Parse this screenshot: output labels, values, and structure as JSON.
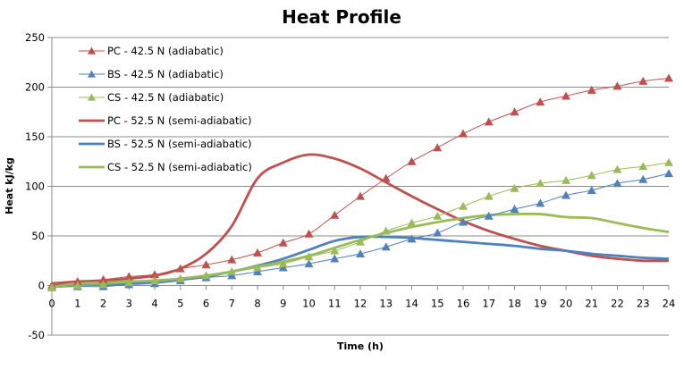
{
  "chart_data": {
    "type": "line",
    "title": "Heat Profile",
    "xlabel": "Time (h)",
    "ylabel": "Heat kJ/kg",
    "xlim": [
      0,
      24
    ],
    "ylim": [
      -50,
      250
    ],
    "x_ticks": [
      0,
      1,
      2,
      3,
      4,
      5,
      6,
      7,
      8,
      9,
      10,
      11,
      12,
      13,
      14,
      15,
      16,
      17,
      18,
      19,
      20,
      21,
      22,
      23,
      24
    ],
    "y_ticks": [
      -50,
      0,
      50,
      100,
      150,
      200,
      250
    ],
    "grid": "horizontal",
    "legend_position": "top-left",
    "x": [
      0,
      1,
      2,
      3,
      4,
      5,
      6,
      7,
      8,
      9,
      10,
      11,
      12,
      13,
      14,
      15,
      16,
      17,
      18,
      19,
      20,
      21,
      22,
      23,
      24
    ],
    "series": [
      {
        "name": "PC - 42.5 N (adiabatic)",
        "color": "#c0504d",
        "style": "thin-marker",
        "values": [
          0,
          4,
          6,
          9,
          11,
          17,
          21,
          26,
          33,
          43,
          52,
          71,
          90,
          108,
          125,
          139,
          153,
          165,
          175,
          185,
          191,
          197,
          201,
          206,
          209
        ]
      },
      {
        "name": "BS - 42.5 N (adiabatic)",
        "color": "#4f81bd",
        "style": "thin-marker",
        "values": [
          -2,
          -1,
          -1,
          1,
          2,
          5,
          8,
          10,
          14,
          18,
          22,
          27,
          32,
          39,
          47,
          53,
          64,
          70,
          77,
          83,
          91,
          96,
          103,
          107,
          113
        ]
      },
      {
        "name": "CS - 42.5 N (adiabatic)",
        "color": "#9bbb59",
        "style": "thin-marker",
        "values": [
          -2,
          0,
          1,
          3,
          5,
          7,
          10,
          14,
          18,
          22,
          29,
          35,
          44,
          55,
          63,
          70,
          80,
          90,
          98,
          103,
          106,
          111,
          117,
          120,
          124
        ]
      },
      {
        "name": "PC - 52.5 N (semi-adiabatic)",
        "color": "#c0504d",
        "style": "thick",
        "values": [
          2,
          4,
          5,
          7,
          10,
          17,
          32,
          60,
          108,
          124,
          132,
          128,
          118,
          104,
          90,
          77,
          65,
          55,
          47,
          40,
          35,
          30,
          27,
          25,
          25
        ]
      },
      {
        "name": "BS - 52.5 N  (semi-adiabatic)",
        "color": "#4f81bd",
        "style": "thick",
        "values": [
          0,
          1,
          1,
          2,
          4,
          6,
          9,
          14,
          20,
          27,
          36,
          45,
          49,
          49,
          48,
          46,
          44,
          42,
          40,
          37,
          35,
          32,
          30,
          28,
          27
        ]
      },
      {
        "name": "CS - 52.5 N  (semi-adiabatic)",
        "color": "#9bbb59",
        "style": "thick",
        "values": [
          0,
          2,
          3,
          4,
          5,
          7,
          10,
          14,
          19,
          24,
          30,
          38,
          46,
          53,
          59,
          64,
          68,
          71,
          72,
          72,
          69,
          68,
          63,
          58,
          54
        ]
      }
    ]
  }
}
